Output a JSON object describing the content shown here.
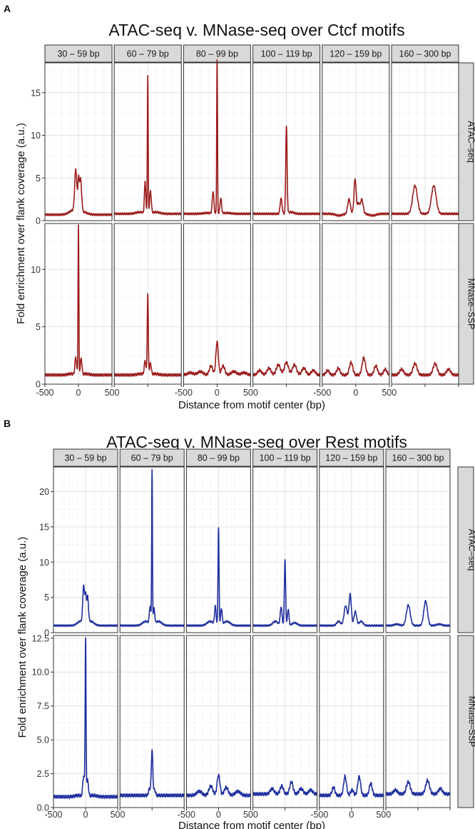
{
  "figures": [
    {
      "panel_label": "A",
      "title": "ATAC-seq v. MNase-seq over Ctcf motifs",
      "ylabel": "Fold enrichment over flank coverage (a.u.)",
      "xlabel": "Distance from motif center (bp)",
      "color": "#9b1b1b"
    },
    {
      "panel_label": "B",
      "title": "ATAC-seq v. MNase-seq over Rest motifs",
      "ylabel": "Fold enrichment over flank coverage (a.u.)",
      "xlabel": "Distance from motif center (bp)",
      "color": "#1f2f9e"
    }
  ],
  "chart_data": [
    {
      "type": "line",
      "title": "ATAC-seq v. MNase-seq over Ctcf motifs",
      "xlabel": "Distance from motif center (bp)",
      "ylabel": "Fold enrichment over flank coverage (a.u.)",
      "columns": [
        "30 – 59 bp",
        "60 – 79 bp",
        "80 – 99 bp",
        "100 – 119 bp",
        "120 – 159 bp",
        "160 – 300 bp"
      ],
      "rows": [
        "ATAC–seq",
        "MNase–SSP"
      ],
      "xlim": [
        -500,
        500
      ],
      "x_ticks": [
        -500,
        0,
        500
      ],
      "x_tick_labels": [
        "-500",
        "0",
        "500"
      ],
      "row_ylims": [
        [
          0,
          18.5
        ],
        [
          0,
          14
        ]
      ],
      "row_yticks": [
        [
          0,
          5,
          10,
          15
        ],
        [
          0,
          5,
          10
        ]
      ],
      "row_ytick_labels": [
        [
          "0",
          "5",
          "10",
          "15"
        ],
        [
          "0",
          "5",
          "10"
        ]
      ],
      "grid": true,
      "series": [
        {
          "row": "ATAC–seq",
          "column": "30 – 59 bp",
          "baseline": 0.7,
          "peaks": [
            {
              "x": -40,
              "y": 5.6,
              "w": 16
            },
            {
              "x": 0,
              "y": 4.0,
              "w": 10
            },
            {
              "x": 30,
              "y": 4.6,
              "w": 16
            },
            {
              "x": -80,
              "y": 1.2,
              "w": 60
            },
            {
              "x": 70,
              "y": 1.0,
              "w": 60
            }
          ]
        },
        {
          "row": "ATAC–seq",
          "column": "60 – 79 bp",
          "baseline": 0.8,
          "peaks": [
            {
              "x": 0,
              "y": 16.9,
              "w": 6
            },
            {
              "x": -40,
              "y": 4.5,
              "w": 10
            },
            {
              "x": 40,
              "y": 3.4,
              "w": 12
            },
            {
              "x": -120,
              "y": 1.0,
              "w": 60
            },
            {
              "x": 120,
              "y": 1.0,
              "w": 60
            }
          ]
        },
        {
          "row": "ATAC–seq",
          "column": "80 – 99 bp",
          "baseline": 0.8,
          "peaks": [
            {
              "x": 0,
              "y": 18.8,
              "w": 6
            },
            {
              "x": -60,
              "y": 3.4,
              "w": 12
            },
            {
              "x": 55,
              "y": 2.6,
              "w": 12
            },
            {
              "x": -150,
              "y": 0.9,
              "w": 60
            },
            {
              "x": 150,
              "y": 0.9,
              "w": 60
            }
          ]
        },
        {
          "row": "ATAC–seq",
          "column": "100 – 119 bp",
          "baseline": 0.8,
          "peaks": [
            {
              "x": 0,
              "y": 11.0,
              "w": 10
            },
            {
              "x": -80,
              "y": 2.6,
              "w": 14
            },
            {
              "x": 70,
              "y": 1.0,
              "w": 40
            }
          ]
        },
        {
          "row": "ATAC–seq",
          "column": "120 – 159 bp",
          "baseline": 0.8,
          "peaks": [
            {
              "x": -10,
              "y": 4.9,
              "w": 16
            },
            {
              "x": -100,
              "y": 2.5,
              "w": 20
            },
            {
              "x": 90,
              "y": 2.5,
              "w": 20
            },
            {
              "x": 40,
              "y": 2.0,
              "w": 16
            },
            {
              "x": -250,
              "y": 0.6,
              "w": 50
            },
            {
              "x": 250,
              "y": 0.6,
              "w": 50
            }
          ]
        },
        {
          "row": "ATAC–seq",
          "column": "160 – 300 bp",
          "baseline": 0.8,
          "peaks": [
            {
              "x": -150,
              "y": 4.1,
              "w": 35
            },
            {
              "x": 130,
              "y": 4.1,
              "w": 35
            },
            {
              "x": -330,
              "y": 0.8,
              "w": 40
            },
            {
              "x": 330,
              "y": 0.8,
              "w": 40
            }
          ]
        },
        {
          "row": "MNase–SSP",
          "column": "30 – 59 bp",
          "baseline": 0.8,
          "peaks": [
            {
              "x": 0,
              "y": 13.8,
              "w": 6
            },
            {
              "x": -40,
              "y": 2.3,
              "w": 12
            },
            {
              "x": 40,
              "y": 2.2,
              "w": 12
            },
            {
              "x": -110,
              "y": 0.9,
              "w": 50
            },
            {
              "x": 110,
              "y": 0.9,
              "w": 50
            }
          ]
        },
        {
          "row": "MNase–SSP",
          "column": "60 – 79 bp",
          "baseline": 0.8,
          "peaks": [
            {
              "x": 0,
              "y": 7.8,
              "w": 8
            },
            {
              "x": -40,
              "y": 2.0,
              "w": 12
            },
            {
              "x": 40,
              "y": 1.8,
              "w": 12
            },
            {
              "x": -110,
              "y": 0.9,
              "w": 50
            },
            {
              "x": 110,
              "y": 0.9,
              "w": 50
            }
          ]
        },
        {
          "row": "MNase–SSP",
          "column": "80 – 99 bp",
          "baseline": 0.8,
          "peaks": [
            {
              "x": 0,
              "y": 3.7,
              "w": 18
            },
            {
              "x": -90,
              "y": 1.6,
              "w": 25
            },
            {
              "x": 90,
              "y": 1.6,
              "w": 25
            },
            {
              "x": -250,
              "y": 1.1,
              "w": 40
            },
            {
              "x": 250,
              "y": 1.1,
              "w": 40
            },
            {
              "x": -400,
              "y": 1.0,
              "w": 40
            },
            {
              "x": 400,
              "y": 1.0,
              "w": 40
            }
          ]
        },
        {
          "row": "MNase–SSP",
          "column": "100 – 119 bp",
          "baseline": 0.8,
          "peaks": [
            {
              "x": 0,
              "y": 1.9,
              "w": 30
            },
            {
              "x": -120,
              "y": 1.7,
              "w": 30
            },
            {
              "x": 120,
              "y": 1.7,
              "w": 30
            },
            {
              "x": -260,
              "y": 1.4,
              "w": 30
            },
            {
              "x": 260,
              "y": 1.4,
              "w": 30
            },
            {
              "x": -400,
              "y": 1.2,
              "w": 30
            },
            {
              "x": 400,
              "y": 1.2,
              "w": 30
            }
          ]
        },
        {
          "row": "MNase–SSP",
          "column": "120 – 159 bp",
          "baseline": 0.8,
          "peaks": [
            {
              "x": -70,
              "y": 1.9,
              "w": 25
            },
            {
              "x": 120,
              "y": 2.3,
              "w": 25
            },
            {
              "x": 300,
              "y": 1.6,
              "w": 25
            },
            {
              "x": -260,
              "y": 1.4,
              "w": 25
            },
            {
              "x": 440,
              "y": 1.3,
              "w": 25
            },
            {
              "x": -420,
              "y": 1.2,
              "w": 25
            }
          ]
        },
        {
          "row": "MNase–SSP",
          "column": "160 – 300 bp",
          "baseline": 0.8,
          "peaks": [
            {
              "x": -150,
              "y": 1.8,
              "w": 30
            },
            {
              "x": 150,
              "y": 1.8,
              "w": 30
            },
            {
              "x": -350,
              "y": 1.3,
              "w": 30
            },
            {
              "x": 350,
              "y": 1.3,
              "w": 30
            }
          ]
        }
      ]
    },
    {
      "type": "line",
      "title": "ATAC-seq v. MNase-seq over Rest motifs",
      "xlabel": "Distance from motif center (bp)",
      "ylabel": "Fold enrichment over flank coverage (a.u.)",
      "columns": [
        "30 – 59 bp",
        "60 – 79 bp",
        "80 – 99 bp",
        "100 – 119 bp",
        "120 – 159 bp",
        "160 – 300 bp"
      ],
      "rows": [
        "ATAC–seq",
        "MNase–SSP"
      ],
      "xlim": [
        -500,
        500
      ],
      "x_ticks": [
        -500,
        0,
        500
      ],
      "x_tick_labels": [
        "-500",
        "0",
        "500"
      ],
      "row_ylims": [
        [
          0,
          23.5
        ],
        [
          0,
          12.7
        ]
      ],
      "row_yticks": [
        [
          0,
          5,
          10,
          15,
          20
        ],
        [
          0,
          2.5,
          5,
          7.5,
          10,
          12.5
        ]
      ],
      "row_ytick_labels": [
        [
          "0",
          "5",
          "10",
          "15",
          "20"
        ],
        [
          "0.0",
          "2.5",
          "5.0",
          "7.5",
          "10.0",
          "12.5"
        ]
      ],
      "grid": true,
      "series": [
        {
          "row": "ATAC–seq",
          "column": "30 – 59 bp",
          "baseline": 1.0,
          "peaks": [
            {
              "x": -30,
              "y": 6.3,
              "w": 14
            },
            {
              "x": 0,
              "y": 4.5,
              "w": 10
            },
            {
              "x": 30,
              "y": 4.8,
              "w": 14
            },
            {
              "x": -80,
              "y": 1.6,
              "w": 50
            },
            {
              "x": 80,
              "y": 1.6,
              "w": 50
            }
          ]
        },
        {
          "row": "ATAC–seq",
          "column": "60 – 79 bp",
          "baseline": 1.0,
          "peaks": [
            {
              "x": 0,
              "y": 22.7,
              "w": 6
            },
            {
              "x": -30,
              "y": 3.5,
              "w": 12
            },
            {
              "x": 30,
              "y": 3.2,
              "w": 12
            },
            {
              "x": -100,
              "y": 1.6,
              "w": 50
            },
            {
              "x": 100,
              "y": 1.6,
              "w": 50
            }
          ]
        },
        {
          "row": "ATAC–seq",
          "column": "80 – 99 bp",
          "baseline": 1.0,
          "peaks": [
            {
              "x": 0,
              "y": 14.8,
              "w": 8
            },
            {
              "x": -50,
              "y": 3.6,
              "w": 12
            },
            {
              "x": 45,
              "y": 3.3,
              "w": 12
            },
            {
              "x": -130,
              "y": 1.6,
              "w": 50
            },
            {
              "x": 130,
              "y": 1.6,
              "w": 50
            }
          ]
        },
        {
          "row": "ATAC–seq",
          "column": "100 – 119 bp",
          "baseline": 1.0,
          "peaks": [
            {
              "x": 0,
              "y": 10.3,
              "w": 10
            },
            {
              "x": -60,
              "y": 3.6,
              "w": 14
            },
            {
              "x": 50,
              "y": 3.3,
              "w": 12
            },
            {
              "x": -150,
              "y": 1.6,
              "w": 40
            },
            {
              "x": 150,
              "y": 1.4,
              "w": 40
            }
          ]
        },
        {
          "row": "ATAC–seq",
          "column": "120 – 159 bp",
          "baseline": 1.0,
          "peaks": [
            {
              "x": -20,
              "y": 5.4,
              "w": 18
            },
            {
              "x": -90,
              "y": 3.8,
              "w": 25
            },
            {
              "x": 60,
              "y": 3.0,
              "w": 20
            },
            {
              "x": 150,
              "y": 1.6,
              "w": 30
            },
            {
              "x": -200,
              "y": 1.6,
              "w": 30
            }
          ]
        },
        {
          "row": "ATAC–seq",
          "column": "160 – 300 bp",
          "baseline": 1.0,
          "peaks": [
            {
              "x": -150,
              "y": 3.9,
              "w": 30
            },
            {
              "x": 120,
              "y": 4.5,
              "w": 28
            },
            {
              "x": -330,
              "y": 1.2,
              "w": 40
            },
            {
              "x": 330,
              "y": 1.2,
              "w": 40
            }
          ]
        },
        {
          "row": "MNase–SSP",
          "column": "30 – 59 bp",
          "baseline": 0.8,
          "peaks": [
            {
              "x": 0,
              "y": 12.2,
              "w": 7
            },
            {
              "x": -30,
              "y": 2.3,
              "w": 14
            },
            {
              "x": 30,
              "y": 2.0,
              "w": 14
            },
            {
              "x": -120,
              "y": 0.9,
              "w": 50
            },
            {
              "x": 120,
              "y": 0.9,
              "w": 50
            }
          ]
        },
        {
          "row": "MNase–SSP",
          "column": "60 – 79 bp",
          "baseline": 0.9,
          "peaks": [
            {
              "x": 0,
              "y": 4.2,
              "w": 12
            },
            {
              "x": -40,
              "y": 1.4,
              "w": 14
            },
            {
              "x": 40,
              "y": 1.3,
              "w": 14
            }
          ]
        },
        {
          "row": "MNase–SSP",
          "column": "80 – 99 bp",
          "baseline": 0.9,
          "peaks": [
            {
              "x": 0,
              "y": 2.4,
              "w": 22
            },
            {
              "x": -120,
              "y": 1.6,
              "w": 30
            },
            {
              "x": 120,
              "y": 1.5,
              "w": 30
            },
            {
              "x": -300,
              "y": 1.2,
              "w": 40
            },
            {
              "x": 300,
              "y": 1.2,
              "w": 40
            }
          ]
        },
        {
          "row": "MNase–SSP",
          "column": "100 – 119 bp",
          "baseline": 1.0,
          "peaks": [
            {
              "x": 100,
              "y": 1.9,
              "w": 25
            },
            {
              "x": -50,
              "y": 1.6,
              "w": 25
            },
            {
              "x": -200,
              "y": 1.4,
              "w": 30
            },
            {
              "x": 250,
              "y": 1.4,
              "w": 30
            },
            {
              "x": 400,
              "y": 1.3,
              "w": 30
            }
          ]
        },
        {
          "row": "MNase–SSP",
          "column": "120 – 159 bp",
          "baseline": 0.9,
          "peaks": [
            {
              "x": -100,
              "y": 2.3,
              "w": 22
            },
            {
              "x": 120,
              "y": 2.3,
              "w": 22
            },
            {
              "x": 300,
              "y": 1.8,
              "w": 22
            },
            {
              "x": -280,
              "y": 1.5,
              "w": 22
            },
            {
              "x": 10,
              "y": 1.3,
              "w": 22
            }
          ]
        },
        {
          "row": "MNase–SSP",
          "column": "160 – 300 bp",
          "baseline": 1.0,
          "peaks": [
            {
              "x": -150,
              "y": 1.9,
              "w": 30
            },
            {
              "x": 150,
              "y": 2.0,
              "w": 30
            },
            {
              "x": -350,
              "y": 1.3,
              "w": 30
            },
            {
              "x": 350,
              "y": 1.4,
              "w": 30
            }
          ]
        }
      ]
    }
  ]
}
